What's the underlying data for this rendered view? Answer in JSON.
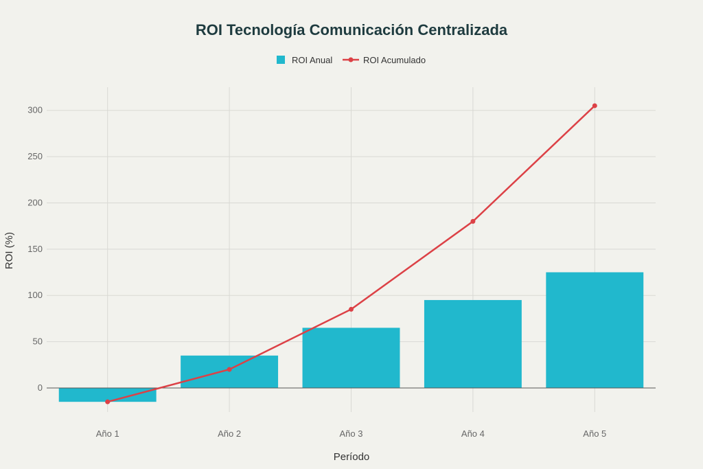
{
  "chart_data": {
    "type": "bar",
    "title": "ROI Tecnología Comunicación Centralizada",
    "xlabel": "Período",
    "ylabel": "ROI (%)",
    "categories": [
      "Año 1",
      "Año 2",
      "Año 3",
      "Año 4",
      "Año 5"
    ],
    "ylim": [
      -26,
      325
    ],
    "yticks": [
      0,
      50,
      100,
      150,
      200,
      250,
      300
    ],
    "grid": true,
    "legend_position": "top-center",
    "series": [
      {
        "name": "ROI Anual",
        "type": "bar",
        "color": "#21b8cd",
        "values": [
          -15,
          35,
          65,
          95,
          125
        ]
      },
      {
        "name": "ROI Acumulado",
        "type": "line",
        "color": "#dc4146",
        "values": [
          -15,
          20,
          85,
          180,
          305
        ]
      }
    ]
  }
}
